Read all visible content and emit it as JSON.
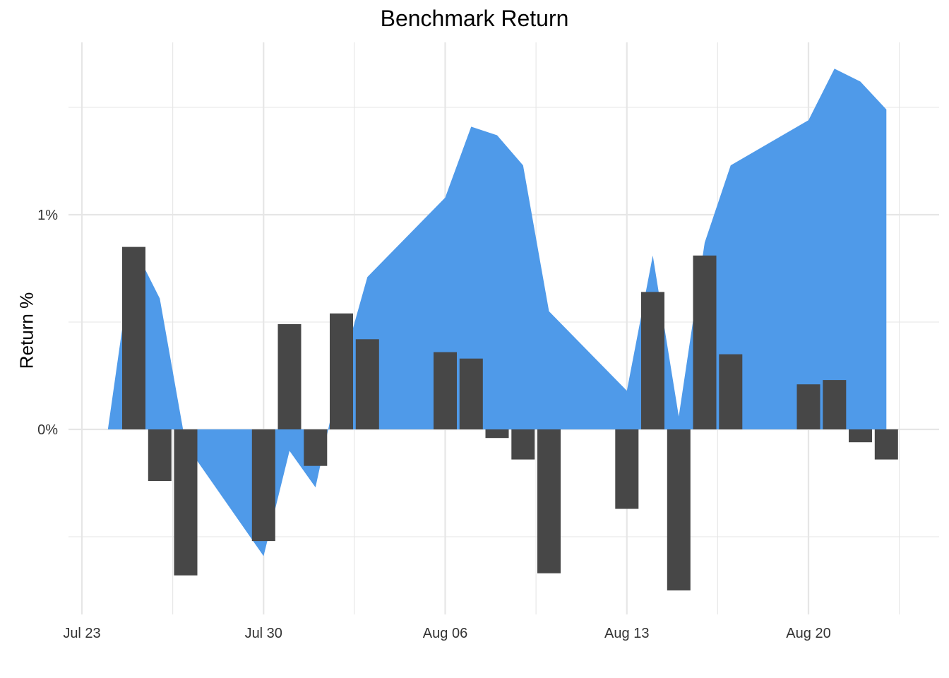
{
  "chart_data": {
    "type": "bar",
    "title": "Benchmark Return",
    "xlabel": "",
    "ylabel": "Return %",
    "x_ticks": [
      "Jul 23",
      "Jul 30",
      "Aug 06",
      "Aug 13",
      "Aug 20"
    ],
    "y_ticks": [
      "0%",
      "1%"
    ],
    "ylim": [
      -0.87,
      1.8
    ],
    "grid": true,
    "colors": {
      "area": "#4f9ae9",
      "bars": "#474747",
      "grid": "#e6e6e6"
    },
    "cumulative_area": {
      "name": "",
      "x": [
        "2018-07-24",
        "2018-07-25",
        "2018-07-26",
        "2018-07-27",
        "2018-07-30",
        "2018-07-31",
        "2018-08-01",
        "2018-08-02",
        "2018-08-03",
        "2018-08-06",
        "2018-08-07",
        "2018-08-08",
        "2018-08-09",
        "2018-08-10",
        "2018-08-13",
        "2018-08-14",
        "2018-08-15",
        "2018-08-16",
        "2018-08-17",
        "2018-08-20",
        "2018-08-21",
        "2018-08-22",
        "2018-08-23"
      ],
      "values": [
        0.0,
        0.85,
        0.61,
        -0.07,
        -0.59,
        -0.1,
        -0.27,
        0.28,
        0.71,
        1.08,
        1.41,
        1.37,
        1.23,
        0.55,
        0.18,
        0.81,
        0.06,
        0.87,
        1.23,
        1.44,
        1.68,
        1.62,
        1.49
      ]
    },
    "daily_bars": {
      "name": "",
      "x": [
        "2018-07-25",
        "2018-07-26",
        "2018-07-27",
        "2018-07-30",
        "2018-07-31",
        "2018-08-01",
        "2018-08-02",
        "2018-08-03",
        "2018-08-06",
        "2018-08-07",
        "2018-08-08",
        "2018-08-09",
        "2018-08-10",
        "2018-08-13",
        "2018-08-14",
        "2018-08-15",
        "2018-08-16",
        "2018-08-17",
        "2018-08-20",
        "2018-08-21",
        "2018-08-22",
        "2018-08-23"
      ],
      "values": [
        0.85,
        -0.24,
        -0.68,
        -0.52,
        0.49,
        -0.17,
        0.54,
        0.42,
        0.36,
        0.33,
        -0.04,
        -0.14,
        -0.67,
        -0.37,
        0.64,
        -0.75,
        0.81,
        0.35,
        0.21,
        0.23,
        -0.06,
        -0.14
      ]
    }
  }
}
